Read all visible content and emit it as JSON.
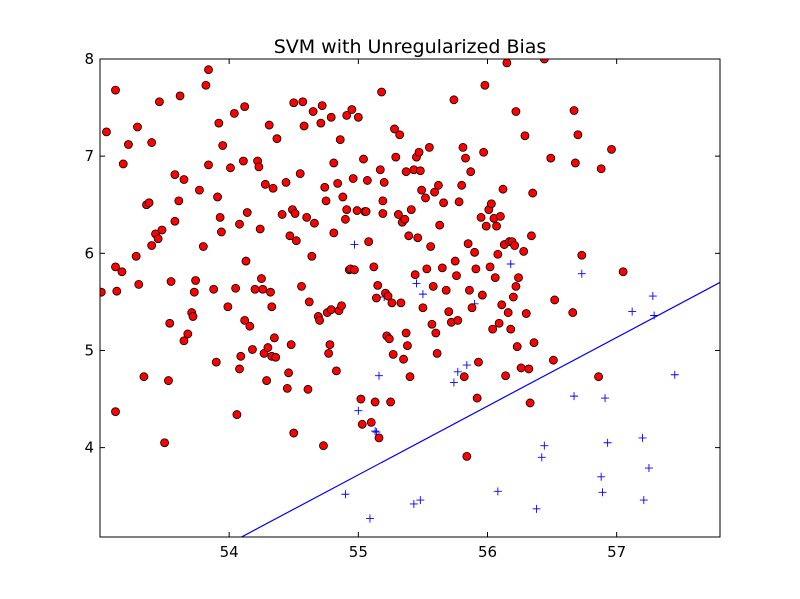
{
  "chart_data": {
    "type": "scatter",
    "title": "SVM with Unregularized Bias",
    "xlabel": "",
    "ylabel": "",
    "xlim": [
      53.0,
      57.8
    ],
    "ylim": [
      3.08,
      8.0
    ],
    "xticks": [
      54,
      55,
      56,
      57
    ],
    "yticks": [
      4,
      5,
      6,
      7,
      8
    ],
    "grid": false,
    "colors": {
      "positive_fill": "#ff0000",
      "positive_edge": "#000000",
      "negative": "#0000ff",
      "boundary": "#0000ff"
    },
    "series": [
      {
        "marker": "circle",
        "points": [
          [
            53.01,
            5.6
          ],
          [
            53.05,
            7.25
          ],
          [
            53.12,
            4.37
          ],
          [
            53.12,
            7.68
          ],
          [
            53.12,
            5.86
          ],
          [
            53.13,
            5.61
          ],
          [
            53.17,
            5.81
          ],
          [
            53.18,
            6.92
          ],
          [
            53.22,
            7.12
          ],
          [
            53.28,
            5.97
          ],
          [
            53.29,
            7.3
          ],
          [
            53.3,
            5.68
          ],
          [
            53.34,
            4.73
          ],
          [
            53.36,
            6.5
          ],
          [
            53.38,
            6.52
          ],
          [
            53.4,
            6.08
          ],
          [
            53.4,
            7.14
          ],
          [
            53.43,
            6.2
          ],
          [
            53.45,
            6.15
          ],
          [
            53.46,
            7.56
          ],
          [
            53.48,
            6.24
          ],
          [
            53.5,
            4.05
          ],
          [
            53.53,
            4.69
          ],
          [
            53.54,
            5.28
          ],
          [
            53.55,
            5.71
          ],
          [
            53.58,
            6.33
          ],
          [
            53.58,
            6.81
          ],
          [
            53.61,
            6.54
          ],
          [
            53.62,
            7.62
          ],
          [
            53.65,
            5.1
          ],
          [
            53.65,
            6.76
          ],
          [
            53.68,
            5.17
          ],
          [
            53.71,
            5.39
          ],
          [
            53.72,
            5.35
          ],
          [
            53.73,
            5.6
          ],
          [
            53.74,
            5.72
          ],
          [
            53.77,
            6.65
          ],
          [
            53.8,
            6.07
          ],
          [
            53.82,
            7.73
          ],
          [
            53.84,
            7.89
          ],
          [
            53.84,
            6.91
          ],
          [
            53.88,
            5.63
          ],
          [
            53.9,
            4.88
          ],
          [
            53.91,
            6.58
          ],
          [
            53.92,
            7.34
          ],
          [
            53.93,
            6.37
          ],
          [
            53.94,
            6.22
          ],
          [
            53.95,
            7.11
          ],
          [
            53.99,
            5.45
          ],
          [
            54.01,
            6.88
          ],
          [
            54.04,
            7.44
          ],
          [
            54.05,
            5.64
          ],
          [
            54.06,
            4.34
          ],
          [
            54.08,
            6.3
          ],
          [
            54.08,
            4.81
          ],
          [
            54.09,
            4.94
          ],
          [
            54.11,
            6.95
          ],
          [
            54.12,
            5.31
          ],
          [
            54.12,
            7.51
          ],
          [
            54.13,
            5.92
          ],
          [
            54.14,
            6.42
          ],
          [
            54.16,
            5.25
          ],
          [
            54.18,
            5.01
          ],
          [
            54.2,
            5.63
          ],
          [
            54.22,
            6.95
          ],
          [
            54.23,
            6.89
          ],
          [
            54.24,
            6.25
          ],
          [
            54.25,
            5.74
          ],
          [
            54.26,
            5.63
          ],
          [
            54.27,
            4.97
          ],
          [
            54.28,
            6.71
          ],
          [
            54.29,
            4.69
          ],
          [
            54.3,
            5.03
          ],
          [
            54.31,
            7.32
          ],
          [
            54.32,
            5.6
          ],
          [
            54.33,
            4.94
          ],
          [
            54.33,
            5.45
          ],
          [
            54.34,
            6.67
          ],
          [
            54.35,
            5.13
          ],
          [
            54.36,
            4.93
          ],
          [
            54.37,
            7.18
          ],
          [
            54.41,
            6.4
          ],
          [
            54.44,
            6.73
          ],
          [
            54.45,
            4.61
          ],
          [
            54.46,
            4.77
          ],
          [
            54.47,
            6.18
          ],
          [
            54.48,
            5.06
          ],
          [
            54.49,
            6.45
          ],
          [
            54.5,
            7.55
          ],
          [
            54.5,
            4.15
          ],
          [
            54.51,
            6.41
          ],
          [
            54.52,
            6.13
          ],
          [
            54.55,
            6.82
          ],
          [
            54.56,
            5.66
          ],
          [
            54.57,
            7.56
          ],
          [
            54.58,
            7.31
          ],
          [
            54.6,
            6.37
          ],
          [
            54.61,
            4.6
          ],
          [
            54.62,
            5.5
          ],
          [
            54.64,
            5.97
          ],
          [
            54.65,
            7.46
          ],
          [
            54.66,
            6.31
          ],
          [
            54.69,
            5.35
          ],
          [
            54.7,
            5.31
          ],
          [
            54.71,
            7.34
          ],
          [
            54.72,
            7.52
          ],
          [
            54.73,
            4.02
          ],
          [
            54.74,
            6.68
          ],
          [
            54.75,
            6.54
          ],
          [
            54.76,
            5.39
          ],
          [
            54.77,
            4.97
          ],
          [
            54.78,
            5.06
          ],
          [
            54.79,
            5.42
          ],
          [
            54.79,
            7.4
          ],
          [
            54.81,
            6.21
          ],
          [
            54.81,
            6.93
          ],
          [
            54.83,
            4.79
          ],
          [
            54.84,
            6.72
          ],
          [
            54.85,
            5.41
          ],
          [
            54.86,
            7.17
          ],
          [
            54.87,
            5.46
          ],
          [
            54.88,
            6.58
          ],
          [
            54.9,
            6.35
          ],
          [
            54.91,
            6.45
          ],
          [
            54.91,
            7.42
          ],
          [
            54.93,
            5.83
          ],
          [
            54.94,
            5.84
          ],
          [
            54.95,
            7.48
          ],
          [
            54.96,
            6.77
          ],
          [
            54.97,
            5.83
          ],
          [
            54.99,
            6.44
          ],
          [
            55.0,
            7.4
          ],
          [
            55.02,
            4.5
          ],
          [
            55.03,
            4.24
          ],
          [
            55.04,
            6.97
          ],
          [
            55.05,
            6.43
          ],
          [
            55.06,
            6.43
          ],
          [
            55.07,
            6.75
          ],
          [
            55.08,
            6.12
          ],
          [
            55.1,
            4.26
          ],
          [
            55.12,
            5.86
          ],
          [
            55.13,
            4.47
          ],
          [
            55.14,
            5.54
          ],
          [
            55.15,
            5.67
          ],
          [
            55.16,
            4.1
          ],
          [
            55.17,
            6.86
          ],
          [
            55.18,
            7.66
          ],
          [
            55.19,
            6.54
          ],
          [
            55.19,
            6.41
          ],
          [
            55.2,
            6.73
          ],
          [
            55.21,
            5.59
          ],
          [
            55.22,
            5.15
          ],
          [
            55.23,
            5.56
          ],
          [
            55.24,
            5.12
          ],
          [
            55.25,
            4.47
          ],
          [
            55.26,
            5.49
          ],
          [
            55.27,
            4.96
          ],
          [
            55.28,
            7.28
          ],
          [
            55.29,
            6.99
          ],
          [
            55.31,
            6.4
          ],
          [
            55.32,
            7.22
          ],
          [
            55.33,
            5.49
          ],
          [
            55.34,
            6.32
          ],
          [
            55.35,
            4.91
          ],
          [
            55.36,
            6.35
          ],
          [
            55.37,
            6.84
          ],
          [
            55.37,
            5.18
          ],
          [
            55.38,
            5.05
          ],
          [
            55.39,
            6.18
          ],
          [
            55.4,
            4.73
          ],
          [
            55.41,
            6.45
          ],
          [
            55.43,
            6.86
          ],
          [
            55.44,
            5.78
          ],
          [
            55.45,
            6.99
          ],
          [
            55.46,
            6.16
          ],
          [
            55.47,
            7.04
          ],
          [
            55.48,
            6.85
          ],
          [
            55.49,
            6.65
          ],
          [
            55.5,
            5.44
          ],
          [
            55.52,
            6.57
          ],
          [
            55.53,
            5.84
          ],
          [
            55.55,
            7.09
          ],
          [
            55.56,
            6.07
          ],
          [
            55.57,
            5.27
          ],
          [
            55.58,
            5.66
          ],
          [
            55.59,
            6.63
          ],
          [
            55.6,
            5.18
          ],
          [
            55.61,
            4.97
          ],
          [
            55.62,
            6.7
          ],
          [
            55.63,
            6.29
          ],
          [
            55.65,
            5.85
          ],
          [
            55.66,
            6.52
          ],
          [
            55.68,
            5.62
          ],
          [
            55.7,
            5.4
          ],
          [
            55.72,
            5.29
          ],
          [
            55.74,
            7.58
          ],
          [
            55.75,
            5.92
          ],
          [
            55.76,
            5.77
          ],
          [
            55.77,
            5.31
          ],
          [
            55.78,
            6.53
          ],
          [
            55.8,
            6.7
          ],
          [
            55.81,
            7.09
          ],
          [
            55.82,
            4.73
          ],
          [
            55.83,
            6.98
          ],
          [
            55.84,
            3.91
          ],
          [
            55.85,
            6.1
          ],
          [
            55.86,
            5.62
          ],
          [
            55.87,
            6.84
          ],
          [
            55.88,
            5.44
          ],
          [
            55.9,
            6.01
          ],
          [
            55.91,
            5.84
          ],
          [
            55.92,
            4.51
          ],
          [
            55.93,
            4.88
          ],
          [
            55.95,
            6.37
          ],
          [
            55.96,
            5.57
          ],
          [
            55.97,
            7.04
          ],
          [
            55.98,
            7.73
          ],
          [
            55.99,
            6.28
          ],
          [
            56.01,
            6.45
          ],
          [
            56.02,
            5.86
          ],
          [
            56.03,
            6.51
          ],
          [
            56.04,
            5.22
          ],
          [
            56.05,
            6.36
          ],
          [
            56.06,
            5.75
          ],
          [
            56.07,
            6.28
          ],
          [
            56.08,
            5.99
          ],
          [
            56.09,
            5.28
          ],
          [
            56.1,
            6.38
          ],
          [
            56.11,
            5.47
          ],
          [
            56.12,
            6.66
          ],
          [
            56.13,
            6.09
          ],
          [
            56.14,
            4.74
          ],
          [
            56.15,
            7.96
          ],
          [
            56.16,
            5.39
          ],
          [
            56.17,
            6.12
          ],
          [
            56.18,
            5.22
          ],
          [
            56.19,
            6.12
          ],
          [
            56.2,
            5.55
          ],
          [
            56.21,
            6.08
          ],
          [
            56.22,
            7.46
          ],
          [
            56.22,
            5.66
          ],
          [
            56.23,
            5.04
          ],
          [
            56.24,
            5.75
          ],
          [
            56.26,
            4.82
          ],
          [
            56.28,
            6.02
          ],
          [
            56.29,
            7.21
          ],
          [
            56.3,
            5.38
          ],
          [
            56.32,
            4.81
          ],
          [
            56.33,
            4.46
          ],
          [
            56.34,
            6.18
          ],
          [
            56.35,
            6.62
          ],
          [
            56.36,
            5.08
          ],
          [
            56.44,
            8.0
          ],
          [
            56.49,
            6.98
          ],
          [
            56.51,
            4.9
          ],
          [
            56.52,
            5.52
          ],
          [
            56.66,
            5.39
          ],
          [
            56.67,
            7.47
          ],
          [
            56.68,
            6.93
          ],
          [
            56.7,
            7.22
          ],
          [
            56.73,
            5.98
          ],
          [
            56.86,
            4.73
          ],
          [
            56.88,
            6.87
          ],
          [
            56.96,
            7.07
          ],
          [
            57.05,
            5.81
          ]
        ]
      },
      {
        "marker": "plus",
        "points": [
          [
            54.9,
            3.52
          ],
          [
            54.97,
            6.09
          ],
          [
            55.0,
            4.38
          ],
          [
            55.09,
            3.27
          ],
          [
            55.13,
            4.17
          ],
          [
            55.14,
            4.16
          ],
          [
            55.16,
            4.74
          ],
          [
            55.2,
            5.55
          ],
          [
            55.45,
            5.69
          ],
          [
            55.43,
            3.42
          ],
          [
            55.48,
            3.46
          ],
          [
            55.5,
            5.58
          ],
          [
            55.74,
            4.67
          ],
          [
            55.77,
            4.78
          ],
          [
            55.84,
            4.85
          ],
          [
            55.9,
            5.48
          ],
          [
            56.08,
            3.55
          ],
          [
            56.18,
            5.89
          ],
          [
            56.38,
            3.37
          ],
          [
            56.42,
            3.9
          ],
          [
            56.44,
            4.02
          ],
          [
            56.67,
            4.53
          ],
          [
            56.73,
            5.79
          ],
          [
            56.88,
            3.7
          ],
          [
            56.89,
            3.54
          ],
          [
            56.91,
            4.51
          ],
          [
            56.93,
            4.05
          ],
          [
            57.12,
            5.4
          ],
          [
            57.2,
            4.1
          ],
          [
            57.21,
            3.46
          ],
          [
            57.25,
            3.79
          ],
          [
            57.28,
            5.56
          ],
          [
            57.29,
            5.36
          ],
          [
            57.45,
            4.75
          ]
        ]
      }
    ],
    "decision_boundary": {
      "x": [
        53.77,
        57.8
      ],
      "y": [
        2.85,
        5.7
      ]
    }
  }
}
